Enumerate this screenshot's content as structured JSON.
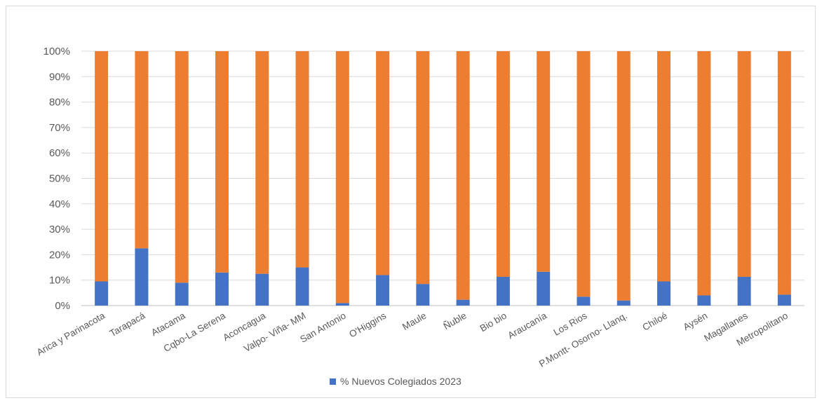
{
  "chart_data": {
    "type": "bar",
    "stacked": true,
    "percent_stacked": true,
    "categories": [
      "Arica y Parinacota",
      "Tarapacá",
      "Atacama",
      "Cqbo-La Serena",
      "Aconcagua",
      "Valpo- Viña- MM",
      "San Antonio",
      "O'Higgins",
      "Maule",
      "Ñuble",
      "Bio bio",
      "Araucanía",
      "Los Rios",
      "P.Montt- Osorno- Llanq.",
      "Chiloé",
      "Aysén",
      "Magallanes",
      "Metropolitano"
    ],
    "series": [
      {
        "name": "% Nuevos Colegiados 2023",
        "color": "#4472c4",
        "values": [
          9.5,
          22.5,
          9,
          13,
          12.5,
          15,
          1,
          12,
          8.5,
          2.3,
          11.3,
          13.3,
          3.5,
          2,
          9.5,
          4,
          11.3,
          4.3
        ]
      },
      {
        "name": "",
        "color": "#ed7d31",
        "values": [
          90.5,
          77.5,
          91,
          87,
          87.5,
          85,
          99,
          88,
          91.5,
          97.7,
          88.7,
          86.7,
          96.5,
          98,
          90.5,
          96,
          88.7,
          95.7
        ]
      }
    ],
    "y_ticks": [
      "0%",
      "10%",
      "20%",
      "30%",
      "40%",
      "50%",
      "60%",
      "70%",
      "80%",
      "90%",
      "100%"
    ],
    "ylim": [
      0,
      100
    ],
    "grid": true,
    "legend_position": "bottom",
    "title": "",
    "xlabel": "",
    "ylabel": ""
  }
}
